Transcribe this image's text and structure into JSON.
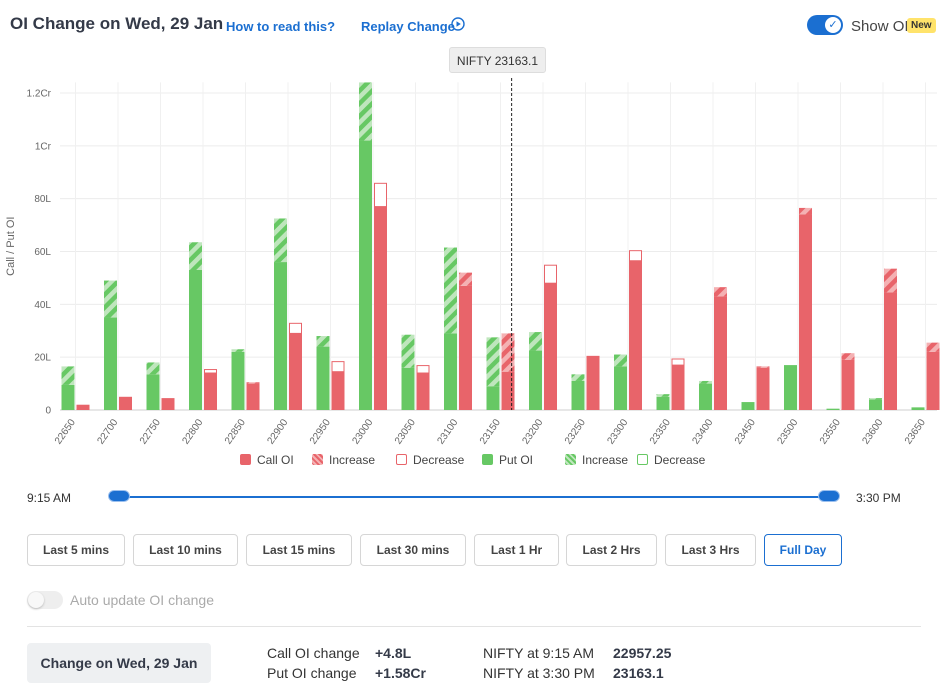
{
  "header": {
    "title": "OI Change on Wed, 29 Jan",
    "how_to_read": "How to read this?",
    "replay": "Replay Change",
    "show_oi_label": "Show OI",
    "new_badge": "New",
    "show_oi_on": true
  },
  "tooltip": "NIFTY 23163.1",
  "colors": {
    "call": "#e8646a",
    "put": "#67c864",
    "call_light": "#f4b1b3",
    "put_light": "#bfe6bd",
    "accent": "#1b6fd1"
  },
  "chart_data": {
    "type": "bar",
    "ylabel": "Call / Put OI",
    "y_unit": "lakh",
    "ylim": [
      0,
      124
    ],
    "y_ticks": [
      {
        "value": 0,
        "label": "0"
      },
      {
        "value": 20,
        "label": "20L"
      },
      {
        "value": 40,
        "label": "40L"
      },
      {
        "value": 60,
        "label": "60L"
      },
      {
        "value": 80,
        "label": "80L"
      },
      {
        "value": 100,
        "label": "1Cr"
      },
      {
        "value": 120,
        "label": "1.2Cr"
      }
    ],
    "categories": [
      "22650",
      "22700",
      "22750",
      "22800",
      "22850",
      "22900",
      "22950",
      "23000",
      "23050",
      "23100",
      "23150",
      "23200",
      "23250",
      "23300",
      "23350",
      "23400",
      "23450",
      "23500",
      "23550",
      "23600",
      "23650"
    ],
    "spot_line": {
      "value": 23163.1,
      "label": "NIFTY 23163.1"
    },
    "series": [
      {
        "name": "Put OI",
        "base": [
          9.5,
          35,
          13.5,
          53,
          22,
          56,
          24,
          102,
          16,
          29,
          9,
          22.5,
          11,
          16.5,
          5,
          10,
          3,
          17,
          0.5,
          4,
          1
        ],
        "change": [
          7,
          14,
          4.5,
          10.5,
          1,
          16.5,
          4,
          22,
          12.5,
          32.5,
          18.5,
          7,
          2.5,
          4.5,
          1,
          1,
          0,
          0,
          0,
          0.5,
          0
        ]
      },
      {
        "name": "Call OI",
        "base": [
          2,
          5,
          4.5,
          14,
          10,
          29,
          14.5,
          77,
          14,
          47,
          14.5,
          48,
          20.5,
          56.5,
          17,
          43,
          16,
          74,
          19,
          44.5,
          22
        ],
        "change": [
          0,
          0,
          0,
          1.5,
          0.5,
          4,
          4,
          9,
          3,
          5,
          14.5,
          7,
          0,
          4,
          2.5,
          3.5,
          0.5,
          2.5,
          2.5,
          9,
          3.5
        ],
        "change_type": [
          "inc",
          "inc",
          "inc",
          "dec",
          "inc",
          "dec",
          "dec",
          "dec",
          "dec",
          "inc",
          "inc",
          "dec",
          "inc",
          "dec",
          "dec",
          "inc",
          "inc",
          "inc",
          "inc",
          "inc",
          "inc"
        ]
      }
    ]
  },
  "legend": [
    {
      "label": "Call OI",
      "style": "call-solid"
    },
    {
      "label": "Increase",
      "style": "call-inc"
    },
    {
      "label": "Decrease",
      "style": "call-dec"
    },
    {
      "label": "Put OI",
      "style": "put-solid"
    },
    {
      "label": "Increase",
      "style": "put-inc"
    },
    {
      "label": "Decrease",
      "style": "put-dec"
    }
  ],
  "slider": {
    "start_label": "9:15 AM",
    "end_label": "3:30 PM",
    "start_fraction": 0,
    "end_fraction": 1
  },
  "range_buttons": [
    {
      "label": "Last 5 mins",
      "active": false
    },
    {
      "label": "Last 10 mins",
      "active": false
    },
    {
      "label": "Last 15 mins",
      "active": false
    },
    {
      "label": "Last 30 mins",
      "active": false
    },
    {
      "label": "Last 1 Hr",
      "active": false
    },
    {
      "label": "Last 2 Hrs",
      "active": false
    },
    {
      "label": "Last 3 Hrs",
      "active": false
    },
    {
      "label": "Full Day",
      "active": true
    }
  ],
  "auto_update": {
    "label": "Auto update OI change",
    "on": false
  },
  "summary": {
    "change_button": "Change on Wed, 29 Jan",
    "call_oi_label": "Call OI change",
    "call_oi_value": "+4.8L",
    "put_oi_label": "Put OI change",
    "put_oi_value": "+1.58Cr",
    "nifty_start_label": "NIFTY at 9:15 AM",
    "nifty_start_value": "22957.25",
    "nifty_end_label": "NIFTY at 3:30 PM",
    "nifty_end_value": "23163.1"
  }
}
